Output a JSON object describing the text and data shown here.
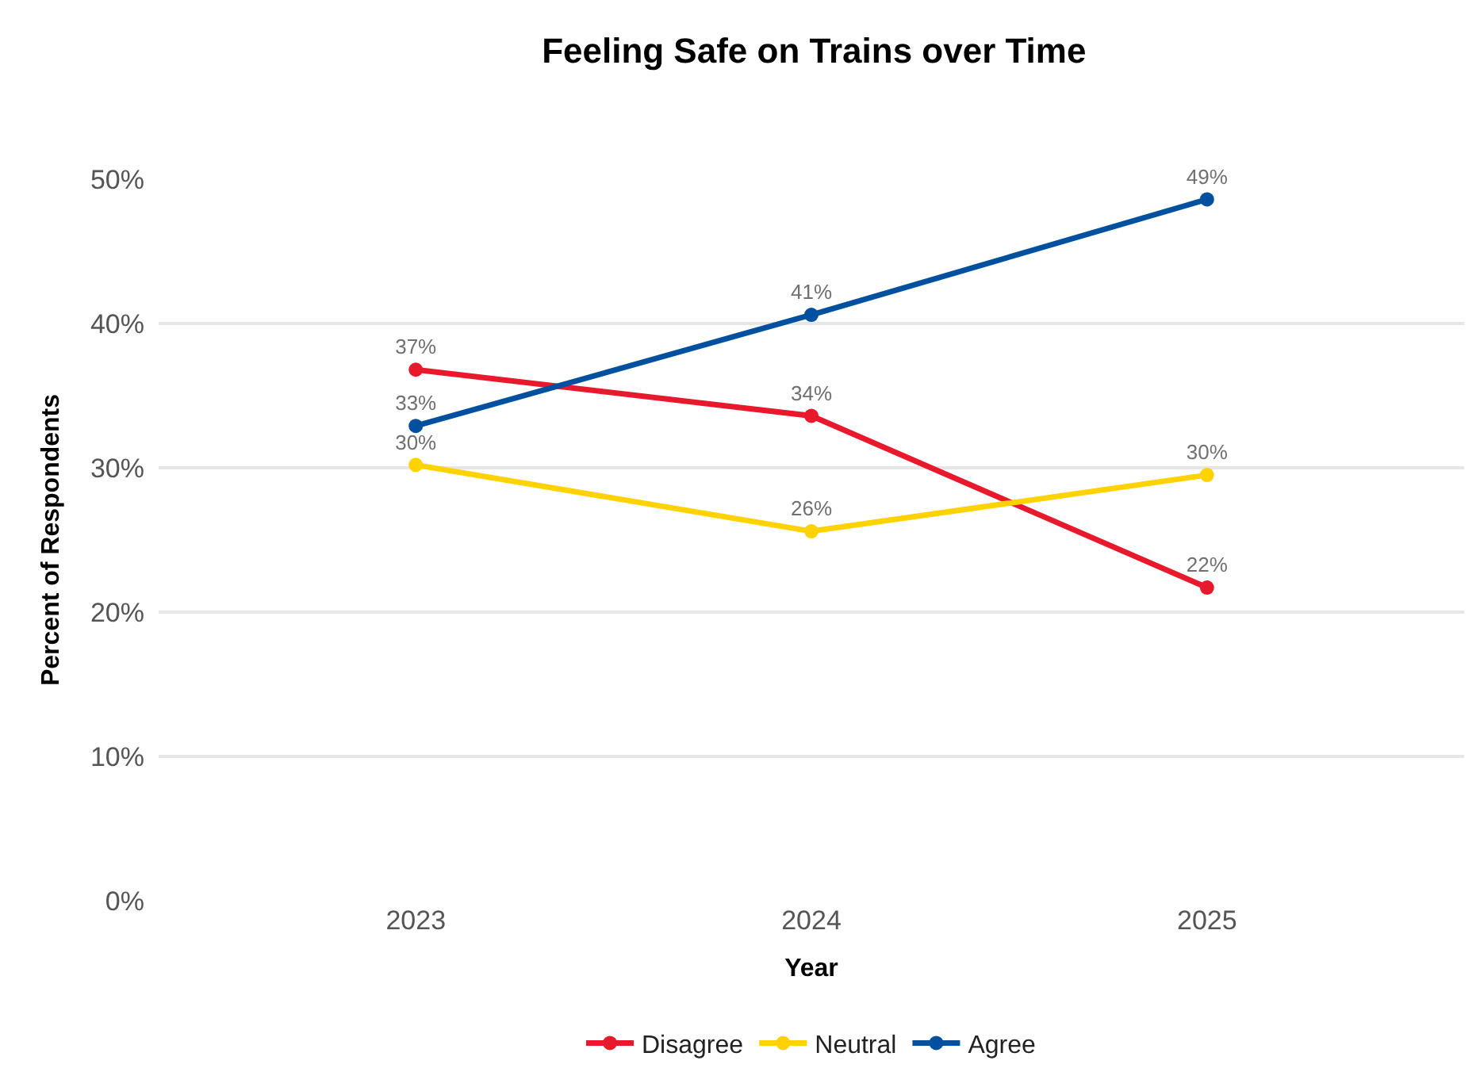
{
  "chart_data": {
    "type": "line",
    "title": "Feeling Safe on Trains over Time",
    "xlabel": "Year",
    "ylabel": "Percent of Respondents",
    "categories": [
      "2023",
      "2024",
      "2025"
    ],
    "series": [
      {
        "name": "Disagree",
        "color": "#e8192c",
        "values": [
          36.8,
          33.6,
          21.7
        ],
        "value_labels": [
          "37%",
          "34%",
          "22%"
        ]
      },
      {
        "name": "Neutral",
        "color": "#ffd200",
        "values": [
          30.2,
          25.6,
          29.5
        ],
        "value_labels": [
          "30%",
          "26%",
          "30%"
        ]
      },
      {
        "name": "Agree",
        "color": "#0050a0",
        "values": [
          32.9,
          40.6,
          48.6
        ],
        "value_labels": [
          "33%",
          "41%",
          "49%"
        ]
      }
    ],
    "ylim": [
      0,
      50
    ],
    "yticks": [
      {
        "value": 0,
        "label": "0%"
      },
      {
        "value": 10,
        "label": "10%"
      },
      {
        "value": 20,
        "label": "20%"
      },
      {
        "value": 30,
        "label": "30%"
      },
      {
        "value": 40,
        "label": "40%"
      },
      {
        "value": 50,
        "label": "50%"
      }
    ],
    "grid": "y",
    "legend": "bottom",
    "marker": "circle",
    "line_style": "solid"
  }
}
